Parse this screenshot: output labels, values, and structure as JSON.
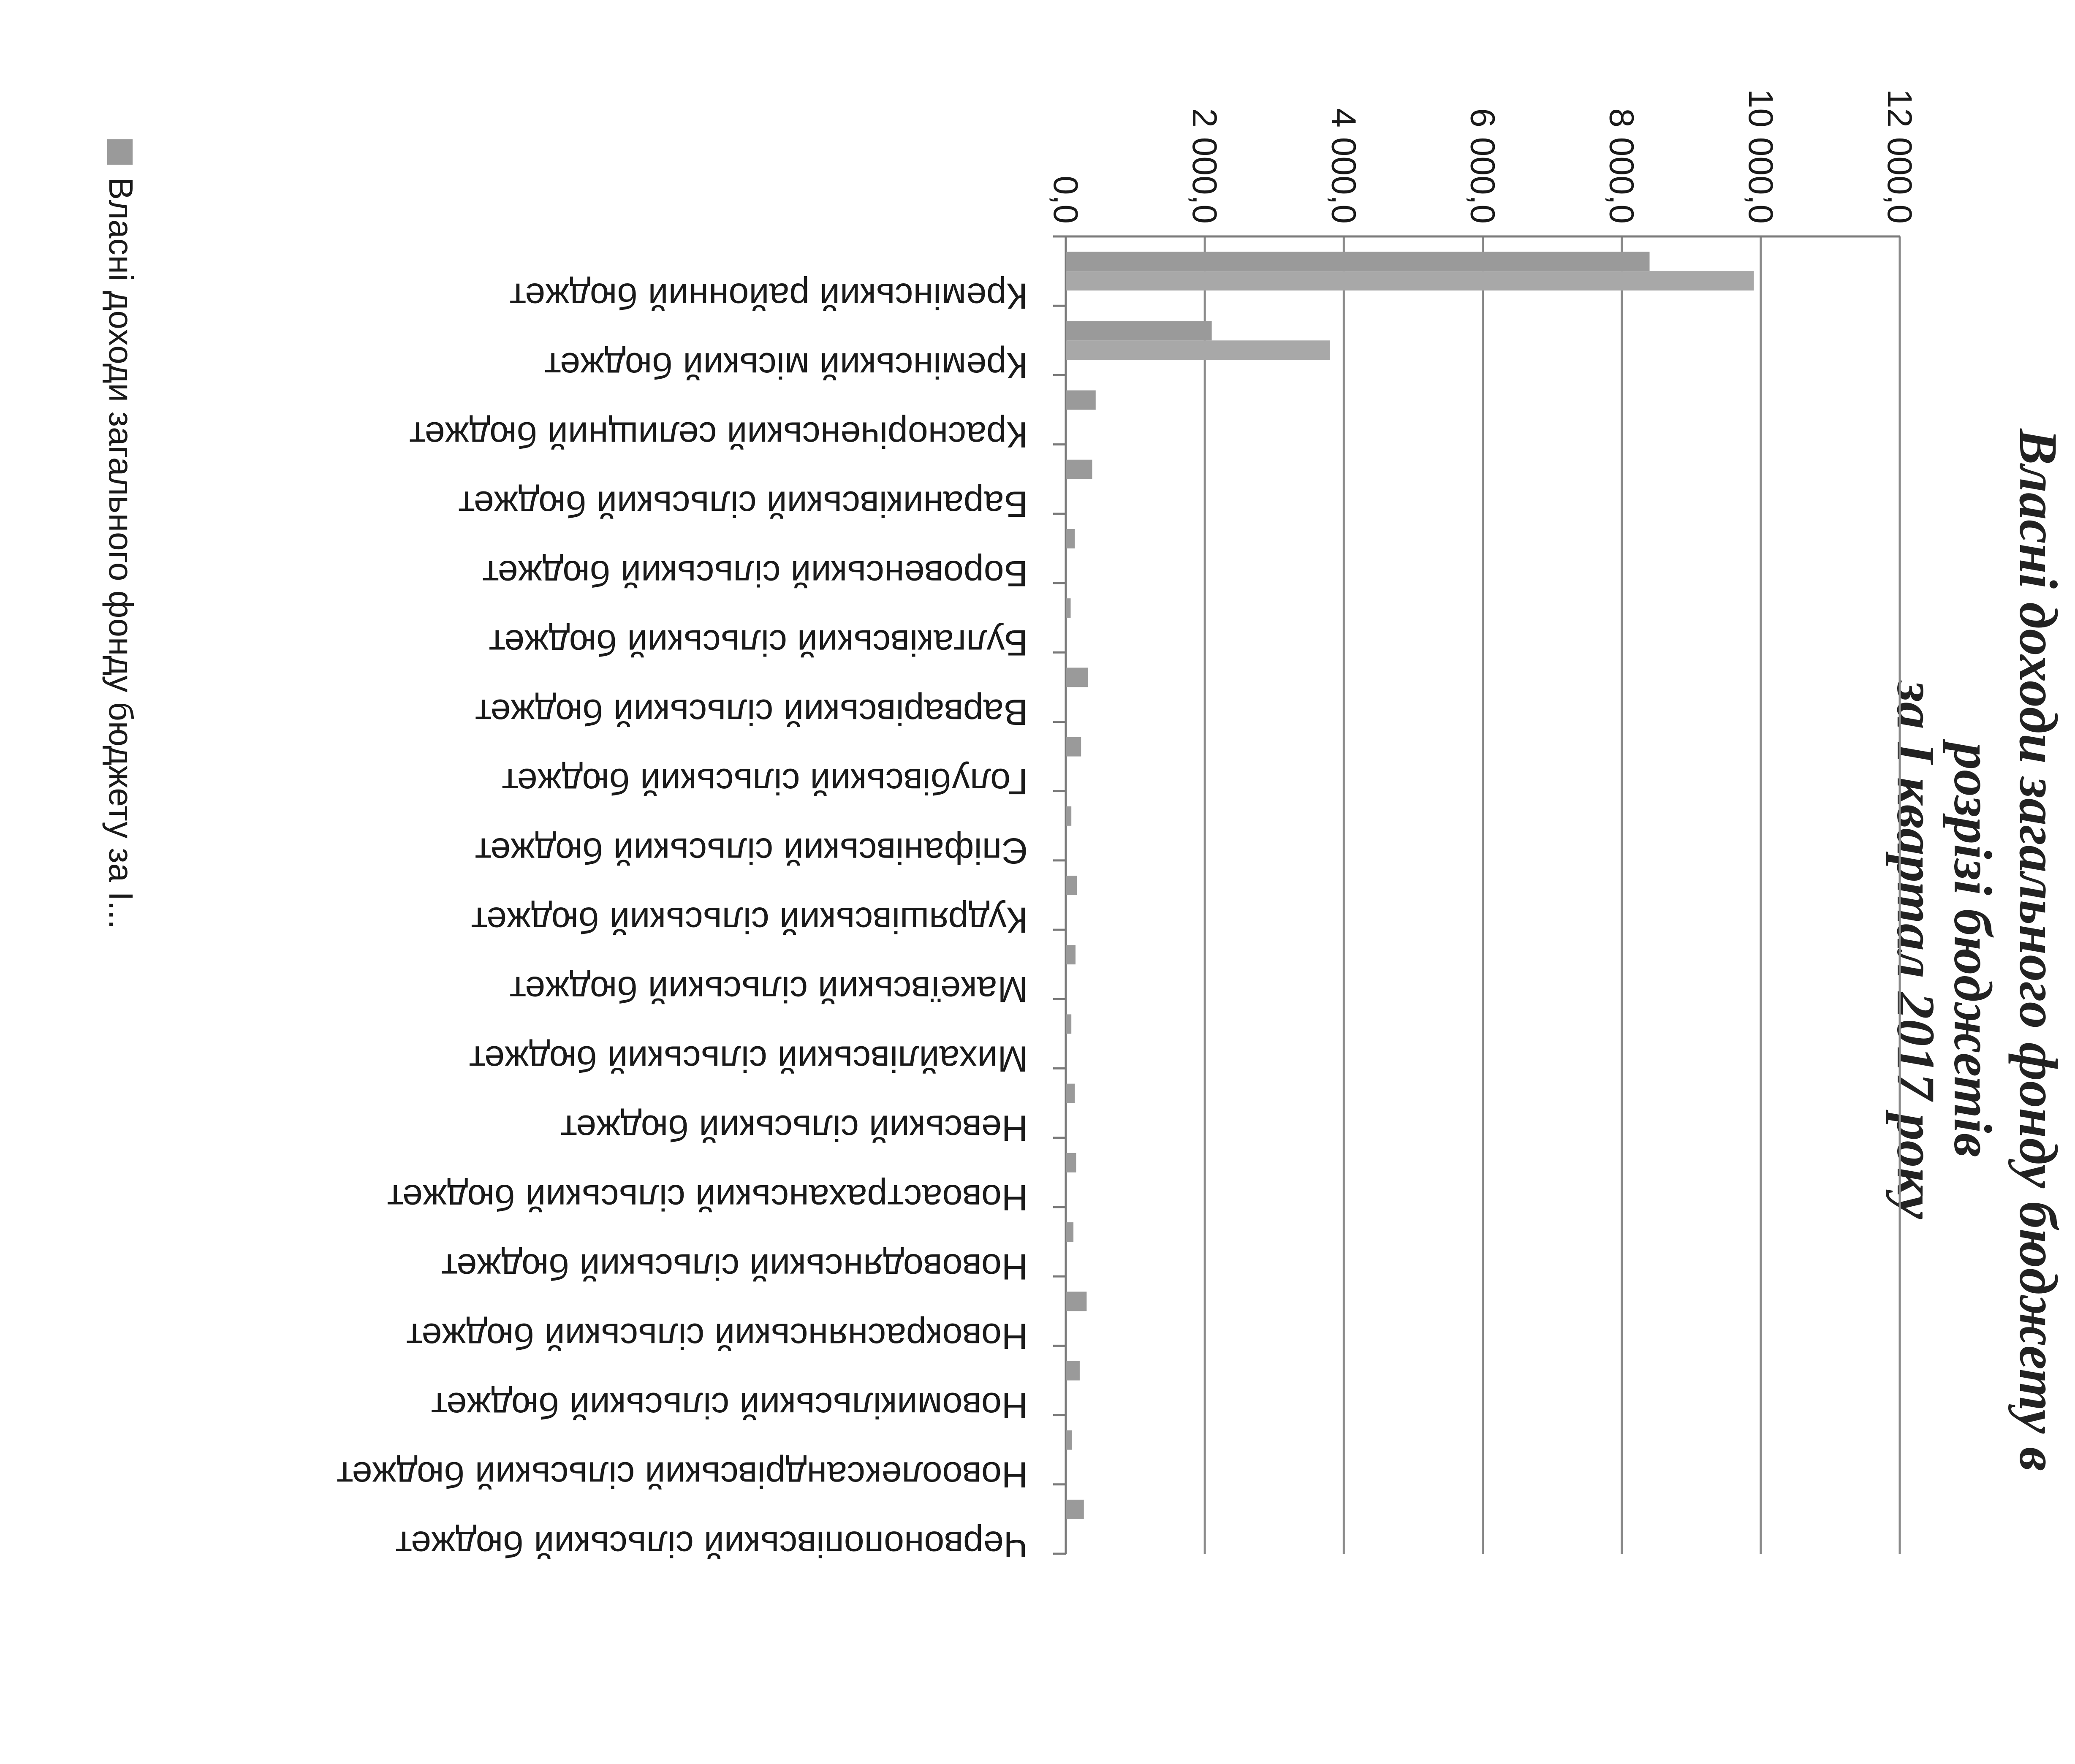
{
  "chart_data": {
    "type": "bar",
    "orientation": "horizontal",
    "title_lines": [
      "Власні доходи загального фонду бюджету в",
      "розрізі бюджетів",
      "за І квартал 2017 року"
    ],
    "categories": [
      "Кремінський районний бюджет",
      "Кремінський міський бюджет",
      "Красноріченський селищний бюджет",
      "Бараниківський сільський бюджет",
      "Боровенський сільський бюджет",
      "Булгаківський сільський бюджет",
      "Варварівський сільський бюджет",
      "Голубівський сільський бюджет",
      "Єпіфанівський сільський бюджет",
      "Кудряшівський сільський бюджет",
      "Макеївський сільський бюджет",
      "Михайлівський сільський бюджет",
      "Невський сільський бюджет",
      "Новоастраханський сільський бюджет",
      "Нововодянський сільський бюджет",
      "Новокраснянський сільський бюджет",
      "Новомикільський сільський бюджет",
      "Новоолександрівський сільський бюджет",
      "Червонопопівський сільський бюджет"
    ],
    "series": [
      {
        "values": [
          8400,
          2100,
          430,
          380,
          130,
          70,
          320,
          220,
          80,
          160,
          140,
          80,
          130,
          150,
          110,
          300,
          200,
          90,
          260
        ]
      },
      {
        "values": [
          9900,
          3800,
          0,
          0,
          0,
          0,
          0,
          0,
          0,
          0,
          0,
          0,
          0,
          0,
          0,
          0,
          0,
          0,
          0
        ]
      }
    ],
    "legend": [
      "Власні доходи загального фонду бюджету за І..."
    ],
    "legend_position": "bottom",
    "x_ticks": [
      "0,0",
      "2 000,0",
      "4 000,0",
      "6 000,0",
      "8 000,0",
      "10 000,0",
      "12 000,0"
    ],
    "xlim": [
      0,
      12000
    ],
    "grid": true,
    "colors": {
      "bar": "#9a9a9a",
      "bar_alt": "#a8a8a8"
    }
  }
}
